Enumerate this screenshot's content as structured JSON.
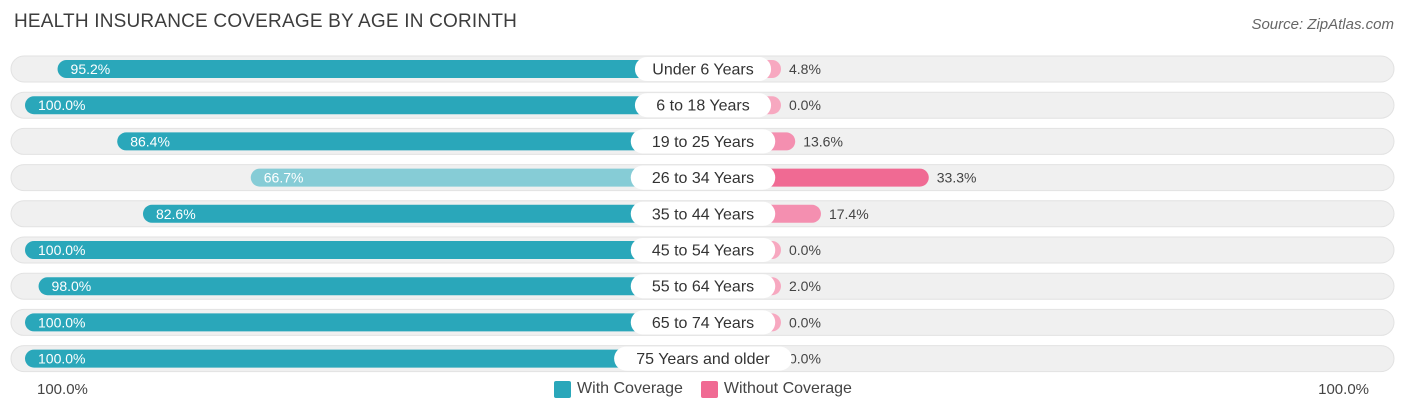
{
  "title": "HEALTH INSURANCE COVERAGE BY AGE IN CORINTH",
  "source": "Source: ZipAtlas.com",
  "colors": {
    "with_strong": "#2aa7ba",
    "with_light": "#86ccd6",
    "without_strong": "#f06a93",
    "without_light": "#f7a8c0",
    "track": "#f0f0f0"
  },
  "chart_data": {
    "type": "bar",
    "orientation": "horizontal-diverging",
    "title": "HEALTH INSURANCE COVERAGE BY AGE IN CORINTH",
    "categories": [
      "Under 6 Years",
      "6 to 18 Years",
      "19 to 25 Years",
      "26 to 34 Years",
      "35 to 44 Years",
      "45 to 54 Years",
      "55 to 64 Years",
      "65 to 74 Years",
      "75 Years and older"
    ],
    "series": [
      {
        "name": "With Coverage",
        "values": [
          95.2,
          100.0,
          86.4,
          66.7,
          82.6,
          100.0,
          98.0,
          100.0,
          100.0
        ],
        "labels": [
          "95.2%",
          "100.0%",
          "86.4%",
          "66.7%",
          "82.6%",
          "100.0%",
          "98.0%",
          "100.0%",
          "100.0%"
        ]
      },
      {
        "name": "Without Coverage",
        "values": [
          4.8,
          0.0,
          13.6,
          33.3,
          17.4,
          0.0,
          2.0,
          0.0,
          0.0
        ],
        "labels": [
          "4.8%",
          "0.0%",
          "13.6%",
          "33.3%",
          "17.4%",
          "0.0%",
          "2.0%",
          "0.0%",
          "0.0%"
        ]
      }
    ],
    "xlim": [
      -100,
      100
    ],
    "axis_left_label": "100.0%",
    "axis_right_label": "100.0%",
    "legend": [
      "With Coverage",
      "Without Coverage"
    ],
    "legend_position": "bottom-center"
  }
}
